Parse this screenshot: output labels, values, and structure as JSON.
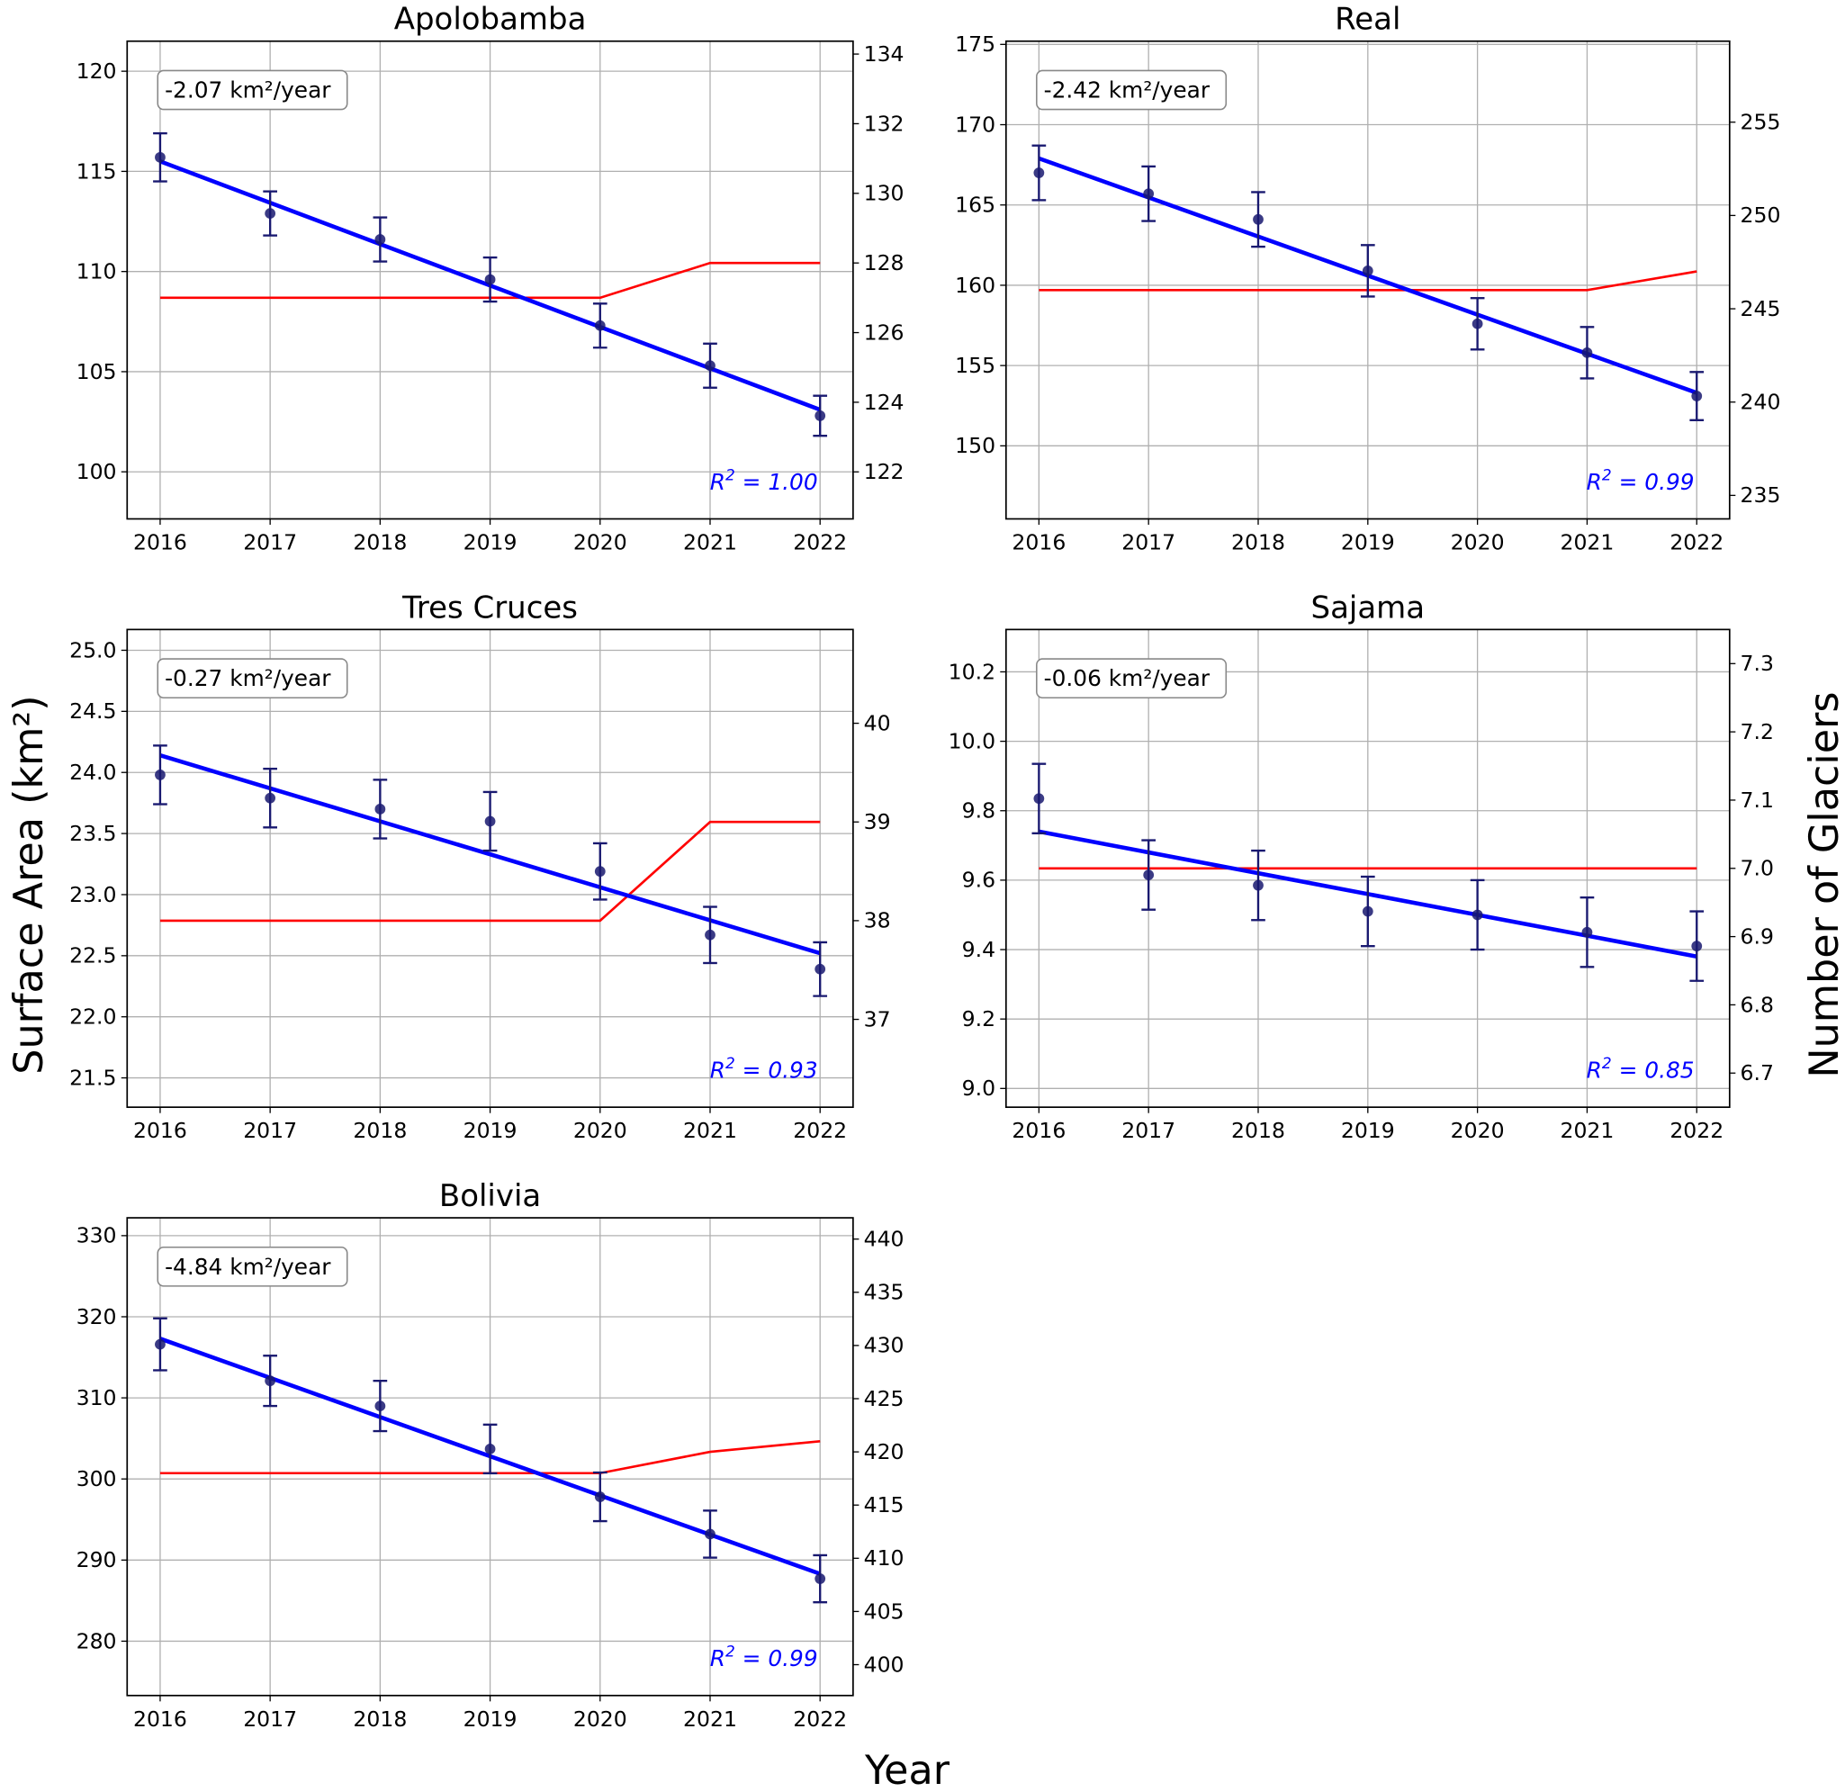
{
  "figure": {
    "xlabel": "Year",
    "ylabel_left": "Surface Area (km²)",
    "ylabel_right": "Number of Glaciers",
    "colors": {
      "points": "#191970",
      "fit": "#0000ff",
      "glaciers": "#ff0000",
      "r2_text": "#0000ff",
      "grid": "#b0b0b0"
    }
  },
  "chart_data": [
    {
      "type": "line",
      "title": "Apolobamba",
      "x": [
        2016,
        2017,
        2018,
        2019,
        2020,
        2021,
        2022
      ],
      "area": [
        115.7,
        112.9,
        111.6,
        109.6,
        107.3,
        105.3,
        102.8
      ],
      "area_error": [
        1.2,
        1.1,
        1.1,
        1.1,
        1.1,
        1.1,
        1.0
      ],
      "fit": [
        115.5,
        103.1
      ],
      "glaciers": [
        127,
        127,
        127,
        127,
        127,
        128,
        128
      ],
      "slope_label": "-2.07 km²/year",
      "r2_label": "= 1.00",
      "ylim_left": [
        97.65,
        121.5
      ],
      "yticks_left": [
        100,
        105,
        110,
        115,
        120
      ],
      "ylim_right": [
        120.65,
        134.37
      ],
      "yticks_right": [
        122,
        124,
        126,
        128,
        130,
        132,
        134
      ],
      "grid": true
    },
    {
      "type": "line",
      "title": "Real",
      "x": [
        2016,
        2017,
        2018,
        2019,
        2020,
        2021,
        2022
      ],
      "area": [
        167.0,
        165.7,
        164.1,
        160.9,
        157.6,
        155.8,
        153.1
      ],
      "area_error": [
        1.7,
        1.7,
        1.7,
        1.6,
        1.6,
        1.6,
        1.5
      ],
      "fit": [
        167.9,
        153.3
      ],
      "glaciers": [
        246,
        246,
        246,
        246,
        246,
        246,
        247
      ],
      "slope_label": "-2.42 km²/year",
      "r2_label": "= 0.99",
      "ylim_left": [
        145.45,
        175.2
      ],
      "yticks_left": [
        150,
        155,
        160,
        165,
        170,
        175
      ],
      "ylim_right": [
        233.74,
        259.34
      ],
      "yticks_right": [
        235,
        240,
        245,
        250,
        255
      ],
      "grid": true
    },
    {
      "type": "line",
      "title": "Tres Cruces",
      "x": [
        2016,
        2017,
        2018,
        2019,
        2020,
        2021,
        2022
      ],
      "area": [
        23.98,
        23.79,
        23.7,
        23.6,
        23.19,
        22.67,
        22.39
      ],
      "area_error": [
        0.24,
        0.24,
        0.24,
        0.24,
        0.23,
        0.23,
        0.22
      ],
      "fit": [
        24.14,
        22.52
      ],
      "glaciers": [
        38,
        38,
        38,
        38,
        38,
        39,
        39
      ],
      "slope_label": "-0.27 km²/year",
      "r2_label": "= 0.93",
      "ylim_left": [
        21.26,
        25.17
      ],
      "yticks_left": [
        21.5,
        22.0,
        22.5,
        23.0,
        23.5,
        24.0,
        24.5,
        25.0
      ],
      "ylim_right": [
        36.11,
        40.95
      ],
      "yticks_right": [
        37,
        38,
        39,
        40
      ],
      "grid": true
    },
    {
      "type": "line",
      "title": "Sajama",
      "x": [
        2016,
        2017,
        2018,
        2019,
        2020,
        2021,
        2022
      ],
      "area": [
        9.835,
        9.615,
        9.585,
        9.51,
        9.5,
        9.45,
        9.41
      ],
      "area_error": [
        0.1,
        0.1,
        0.1,
        0.1,
        0.1,
        0.1,
        0.1
      ],
      "fit": [
        9.74,
        9.38
      ],
      "glaciers": [
        7,
        7,
        7,
        7,
        7,
        7,
        7
      ],
      "slope_label": "-0.06 km²/year",
      "r2_label": "= 0.85",
      "ylim_left": [
        8.946,
        10.322
      ],
      "yticks_left": [
        9.0,
        9.2,
        9.4,
        9.6,
        9.8,
        10.0,
        10.2
      ],
      "ylim_right": [
        6.65,
        7.35
      ],
      "yticks_right": [
        6.7,
        6.8,
        6.9,
        7.0,
        7.1,
        7.2,
        7.3
      ],
      "grid": true
    },
    {
      "type": "line",
      "title": "Bolivia",
      "x": [
        2016,
        2017,
        2018,
        2019,
        2020,
        2021,
        2022
      ],
      "area": [
        316.6,
        312.1,
        309.0,
        303.7,
        297.8,
        293.2,
        287.7
      ],
      "area_error": [
        3.2,
        3.1,
        3.1,
        3.0,
        3.0,
        2.9,
        2.9
      ],
      "fit": [
        317.3,
        288.3
      ],
      "glaciers": [
        418,
        418,
        418,
        418,
        418,
        420,
        421
      ],
      "slope_label": "-4.84 km²/year",
      "r2_label": "= 0.99",
      "ylim_left": [
        273.3,
        332.2
      ],
      "yticks_left": [
        280,
        290,
        300,
        310,
        320,
        330
      ],
      "ylim_right": [
        397.1,
        442.0
      ],
      "yticks_right": [
        400,
        405,
        410,
        415,
        420,
        425,
        430,
        435,
        440
      ],
      "grid": true
    }
  ]
}
